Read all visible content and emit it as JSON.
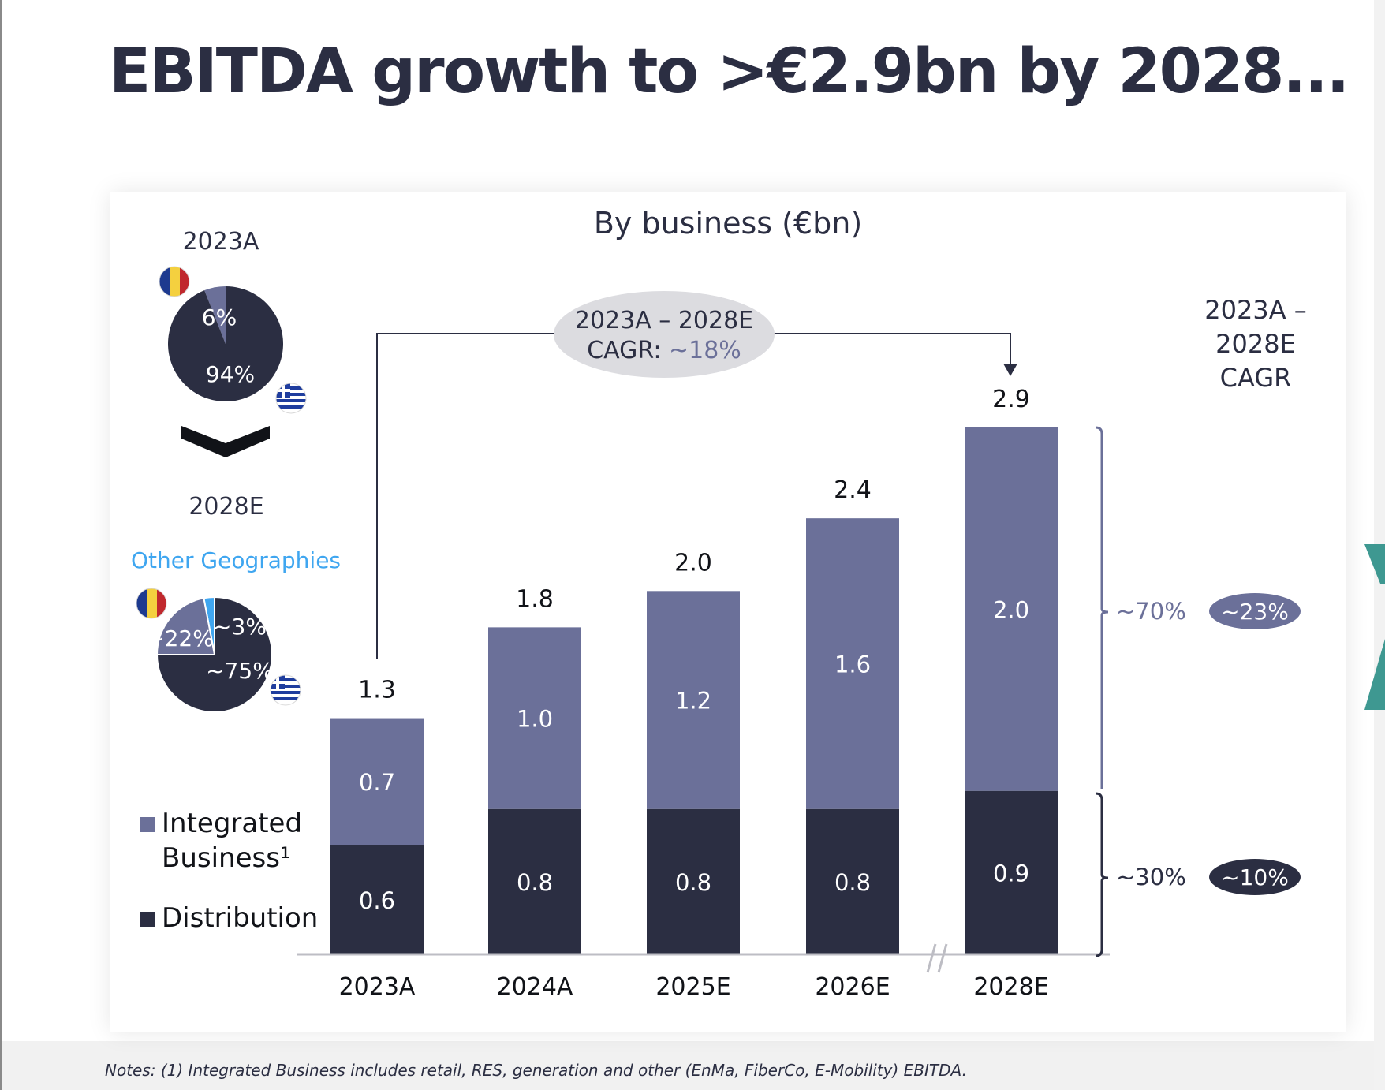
{
  "title": "EBITDA growth to >€2.9bn by 2028...",
  "notes": "Notes: (1) Integrated Business includes retail, RES, generation and other (EnMa, FiberCo, E-Mobility) EBITDA.",
  "colors": {
    "distribution": "#2b2e42",
    "integrated": "#6b7099",
    "other_geographies": "#3fa6f0",
    "cagr_bubble": "#dcdce0",
    "axis": "#bdbdc4",
    "logo_teal": "#3e9891"
  },
  "pies": {
    "pie_2023": {
      "label": "2023A",
      "slices": [
        {
          "name": "Romania",
          "value": 6,
          "label": "6%",
          "color": "#6b7099"
        },
        {
          "name": "Greece",
          "value": 94,
          "label": "94%",
          "color": "#2b2e42"
        }
      ],
      "flags": [
        "romania-flag",
        "greece-flag"
      ]
    },
    "arrow_icon": "chevron-down-icon",
    "pie_2028": {
      "label": "2028E",
      "other_geographies_label": "Other Geographies",
      "slices": [
        {
          "name": "Other Geographies",
          "value": 3,
          "label": "~3%",
          "color": "#3fa6f0"
        },
        {
          "name": "Greece",
          "value": 75,
          "label": "~75%",
          "color": "#2b2e42"
        },
        {
          "name": "Romania",
          "value": 22,
          "label": "~22%",
          "color": "#6b7099"
        }
      ],
      "flags": [
        "romania-flag",
        "greece-flag"
      ]
    }
  },
  "legend": {
    "integrated": "Integrated Business¹",
    "integrated_line1": "Integrated",
    "integrated_line2": "Business¹",
    "distribution": "Distribution"
  },
  "cagr_total": {
    "line1": "2023A – 2028E",
    "line2_prefix": "CAGR: ",
    "line2_value": "~18%"
  },
  "cagr_side": {
    "header_line1": "2023A –",
    "header_line2": "2028E",
    "header_line3": "CAGR",
    "integrated_share": "~70%",
    "integrated_cagr": "~23%",
    "distribution_share": "~30%",
    "distribution_cagr": "~10%"
  },
  "axis_break_label": "//",
  "chart_data": {
    "type": "bar",
    "stacked": true,
    "title": "By business (€bn)",
    "xlabel": "",
    "ylabel": "",
    "ylim": [
      0,
      2.9
    ],
    "grid": false,
    "legend_position": "left",
    "categories": [
      "2023A",
      "2024A",
      "2025E",
      "2026E",
      "2028E"
    ],
    "series": [
      {
        "name": "Distribution",
        "values": [
          0.6,
          0.8,
          0.8,
          0.8,
          0.9
        ],
        "labels": [
          "0.6",
          "0.8",
          "0.8",
          "0.8",
          "0.9"
        ]
      },
      {
        "name": "Integrated Business¹",
        "values": [
          0.7,
          1.0,
          1.2,
          1.6,
          2.0
        ],
        "labels": [
          "0.7",
          "1.0",
          "1.2",
          "1.6",
          "2.0"
        ]
      }
    ],
    "totals": [
      1.3,
      1.8,
      2.0,
      2.4,
      2.9
    ],
    "total_labels": [
      "1.3",
      "1.8",
      "2.0",
      "2.4",
      "2.9"
    ],
    "axis_break_between": [
      "2026E",
      "2028E"
    ]
  }
}
